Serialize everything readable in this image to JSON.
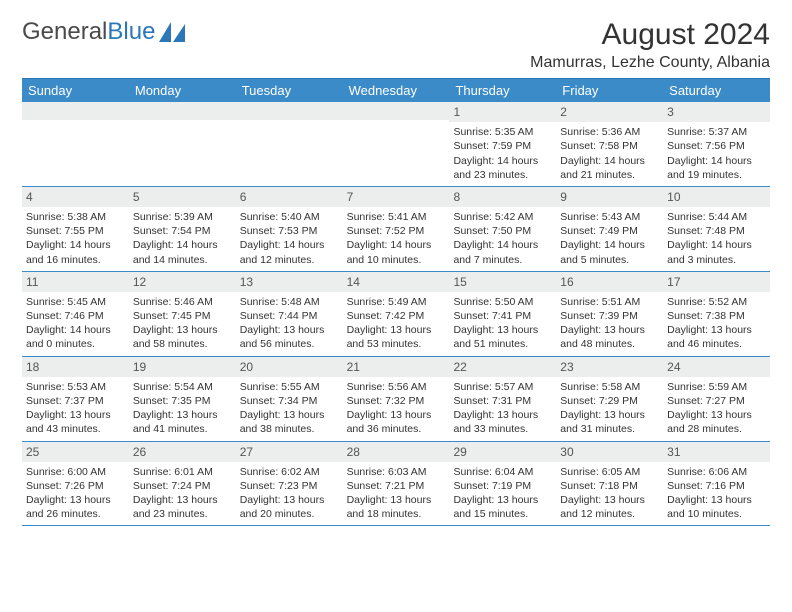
{
  "logo": {
    "textGray": "General",
    "textBlue": "Blue"
  },
  "header": {
    "month_title": "August 2024",
    "location": "Mamurras, Lezhe County, Albania"
  },
  "colors": {
    "header_blue": "#3b8bc9",
    "rule_blue": "#3b8bc9",
    "daynum_bg": "#eceded",
    "logo_blue": "#2c77b8"
  },
  "day_names": [
    "Sunday",
    "Monday",
    "Tuesday",
    "Wednesday",
    "Thursday",
    "Friday",
    "Saturday"
  ],
  "weeks": [
    [
      {
        "n": "",
        "sr": "",
        "ss": "",
        "dl": ""
      },
      {
        "n": "",
        "sr": "",
        "ss": "",
        "dl": ""
      },
      {
        "n": "",
        "sr": "",
        "ss": "",
        "dl": ""
      },
      {
        "n": "",
        "sr": "",
        "ss": "",
        "dl": ""
      },
      {
        "n": "1",
        "sr": "Sunrise: 5:35 AM",
        "ss": "Sunset: 7:59 PM",
        "dl": "Daylight: 14 hours and 23 minutes."
      },
      {
        "n": "2",
        "sr": "Sunrise: 5:36 AM",
        "ss": "Sunset: 7:58 PM",
        "dl": "Daylight: 14 hours and 21 minutes."
      },
      {
        "n": "3",
        "sr": "Sunrise: 5:37 AM",
        "ss": "Sunset: 7:56 PM",
        "dl": "Daylight: 14 hours and 19 minutes."
      }
    ],
    [
      {
        "n": "4",
        "sr": "Sunrise: 5:38 AM",
        "ss": "Sunset: 7:55 PM",
        "dl": "Daylight: 14 hours and 16 minutes."
      },
      {
        "n": "5",
        "sr": "Sunrise: 5:39 AM",
        "ss": "Sunset: 7:54 PM",
        "dl": "Daylight: 14 hours and 14 minutes."
      },
      {
        "n": "6",
        "sr": "Sunrise: 5:40 AM",
        "ss": "Sunset: 7:53 PM",
        "dl": "Daylight: 14 hours and 12 minutes."
      },
      {
        "n": "7",
        "sr": "Sunrise: 5:41 AM",
        "ss": "Sunset: 7:52 PM",
        "dl": "Daylight: 14 hours and 10 minutes."
      },
      {
        "n": "8",
        "sr": "Sunrise: 5:42 AM",
        "ss": "Sunset: 7:50 PM",
        "dl": "Daylight: 14 hours and 7 minutes."
      },
      {
        "n": "9",
        "sr": "Sunrise: 5:43 AM",
        "ss": "Sunset: 7:49 PM",
        "dl": "Daylight: 14 hours and 5 minutes."
      },
      {
        "n": "10",
        "sr": "Sunrise: 5:44 AM",
        "ss": "Sunset: 7:48 PM",
        "dl": "Daylight: 14 hours and 3 minutes."
      }
    ],
    [
      {
        "n": "11",
        "sr": "Sunrise: 5:45 AM",
        "ss": "Sunset: 7:46 PM",
        "dl": "Daylight: 14 hours and 0 minutes."
      },
      {
        "n": "12",
        "sr": "Sunrise: 5:46 AM",
        "ss": "Sunset: 7:45 PM",
        "dl": "Daylight: 13 hours and 58 minutes."
      },
      {
        "n": "13",
        "sr": "Sunrise: 5:48 AM",
        "ss": "Sunset: 7:44 PM",
        "dl": "Daylight: 13 hours and 56 minutes."
      },
      {
        "n": "14",
        "sr": "Sunrise: 5:49 AM",
        "ss": "Sunset: 7:42 PM",
        "dl": "Daylight: 13 hours and 53 minutes."
      },
      {
        "n": "15",
        "sr": "Sunrise: 5:50 AM",
        "ss": "Sunset: 7:41 PM",
        "dl": "Daylight: 13 hours and 51 minutes."
      },
      {
        "n": "16",
        "sr": "Sunrise: 5:51 AM",
        "ss": "Sunset: 7:39 PM",
        "dl": "Daylight: 13 hours and 48 minutes."
      },
      {
        "n": "17",
        "sr": "Sunrise: 5:52 AM",
        "ss": "Sunset: 7:38 PM",
        "dl": "Daylight: 13 hours and 46 minutes."
      }
    ],
    [
      {
        "n": "18",
        "sr": "Sunrise: 5:53 AM",
        "ss": "Sunset: 7:37 PM",
        "dl": "Daylight: 13 hours and 43 minutes."
      },
      {
        "n": "19",
        "sr": "Sunrise: 5:54 AM",
        "ss": "Sunset: 7:35 PM",
        "dl": "Daylight: 13 hours and 41 minutes."
      },
      {
        "n": "20",
        "sr": "Sunrise: 5:55 AM",
        "ss": "Sunset: 7:34 PM",
        "dl": "Daylight: 13 hours and 38 minutes."
      },
      {
        "n": "21",
        "sr": "Sunrise: 5:56 AM",
        "ss": "Sunset: 7:32 PM",
        "dl": "Daylight: 13 hours and 36 minutes."
      },
      {
        "n": "22",
        "sr": "Sunrise: 5:57 AM",
        "ss": "Sunset: 7:31 PM",
        "dl": "Daylight: 13 hours and 33 minutes."
      },
      {
        "n": "23",
        "sr": "Sunrise: 5:58 AM",
        "ss": "Sunset: 7:29 PM",
        "dl": "Daylight: 13 hours and 31 minutes."
      },
      {
        "n": "24",
        "sr": "Sunrise: 5:59 AM",
        "ss": "Sunset: 7:27 PM",
        "dl": "Daylight: 13 hours and 28 minutes."
      }
    ],
    [
      {
        "n": "25",
        "sr": "Sunrise: 6:00 AM",
        "ss": "Sunset: 7:26 PM",
        "dl": "Daylight: 13 hours and 26 minutes."
      },
      {
        "n": "26",
        "sr": "Sunrise: 6:01 AM",
        "ss": "Sunset: 7:24 PM",
        "dl": "Daylight: 13 hours and 23 minutes."
      },
      {
        "n": "27",
        "sr": "Sunrise: 6:02 AM",
        "ss": "Sunset: 7:23 PM",
        "dl": "Daylight: 13 hours and 20 minutes."
      },
      {
        "n": "28",
        "sr": "Sunrise: 6:03 AM",
        "ss": "Sunset: 7:21 PM",
        "dl": "Daylight: 13 hours and 18 minutes."
      },
      {
        "n": "29",
        "sr": "Sunrise: 6:04 AM",
        "ss": "Sunset: 7:19 PM",
        "dl": "Daylight: 13 hours and 15 minutes."
      },
      {
        "n": "30",
        "sr": "Sunrise: 6:05 AM",
        "ss": "Sunset: 7:18 PM",
        "dl": "Daylight: 13 hours and 12 minutes."
      },
      {
        "n": "31",
        "sr": "Sunrise: 6:06 AM",
        "ss": "Sunset: 7:16 PM",
        "dl": "Daylight: 13 hours and 10 minutes."
      }
    ]
  ]
}
